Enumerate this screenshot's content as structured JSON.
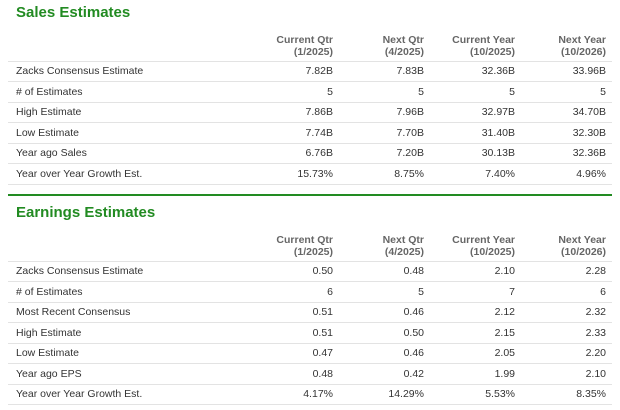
{
  "sales": {
    "title": "Sales Estimates",
    "headers": [
      {
        "line1": "Current Qtr",
        "line2": "(1/2025)"
      },
      {
        "line1": "Next Qtr",
        "line2": "(4/2025)"
      },
      {
        "line1": "Current Year",
        "line2": "(10/2025)"
      },
      {
        "line1": "Next Year",
        "line2": "(10/2026)"
      }
    ],
    "rows": [
      {
        "label": "Zacks Consensus Estimate",
        "values": [
          "7.82B",
          "7.83B",
          "32.36B",
          "33.96B"
        ]
      },
      {
        "label": "# of Estimates",
        "values": [
          "5",
          "5",
          "5",
          "5"
        ]
      },
      {
        "label": "High Estimate",
        "values": [
          "7.86B",
          "7.96B",
          "32.97B",
          "34.70B"
        ]
      },
      {
        "label": "Low Estimate",
        "values": [
          "7.74B",
          "7.70B",
          "31.40B",
          "32.30B"
        ]
      },
      {
        "label": "Year ago Sales",
        "values": [
          "6.76B",
          "7.20B",
          "30.13B",
          "32.36B"
        ]
      },
      {
        "label": "Year over Year Growth Est.",
        "values": [
          "15.73%",
          "8.75%",
          "7.40%",
          "4.96%"
        ]
      }
    ]
  },
  "earnings": {
    "title": "Earnings Estimates",
    "headers": [
      {
        "line1": "Current Qtr",
        "line2": "(1/2025)"
      },
      {
        "line1": "Next Qtr",
        "line2": "(4/2025)"
      },
      {
        "line1": "Current Year",
        "line2": "(10/2025)"
      },
      {
        "line1": "Next Year",
        "line2": "(10/2026)"
      }
    ],
    "rows": [
      {
        "label": "Zacks Consensus Estimate",
        "values": [
          "0.50",
          "0.48",
          "2.10",
          "2.28"
        ]
      },
      {
        "label": "# of Estimates",
        "values": [
          "6",
          "5",
          "7",
          "6"
        ]
      },
      {
        "label": "Most Recent Consensus",
        "values": [
          "0.51",
          "0.46",
          "2.12",
          "2.32"
        ]
      },
      {
        "label": "High Estimate",
        "values": [
          "0.51",
          "0.50",
          "2.15",
          "2.33"
        ]
      },
      {
        "label": "Low Estimate",
        "values": [
          "0.47",
          "0.46",
          "2.05",
          "2.20"
        ]
      },
      {
        "label": "Year ago EPS",
        "values": [
          "0.48",
          "0.42",
          "1.99",
          "2.10"
        ]
      },
      {
        "label": "Year over Year Growth Est.",
        "values": [
          "4.17%",
          "14.29%",
          "5.53%",
          "8.35%"
        ]
      }
    ]
  },
  "colors": {
    "heading": "#228b22",
    "rule": "#228b22",
    "row_border": "#e3e3e3"
  }
}
